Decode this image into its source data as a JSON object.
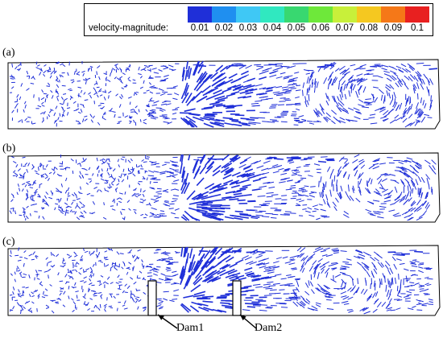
{
  "legend": {
    "label": "velocity-magnitude:",
    "ticks": [
      "0.01",
      "0.02",
      "0.03",
      "0.04",
      "0.05",
      "0.06",
      "0.07",
      "0.08",
      "0.09",
      "0.1"
    ],
    "colors": [
      "#1f2fd8",
      "#1f8ff0",
      "#3fc8f5",
      "#30e8c0",
      "#38d870",
      "#6ee83a",
      "#c8f03a",
      "#f5c820",
      "#f57818",
      "#e82020"
    ]
  },
  "panels": [
    {
      "id": "a",
      "label": "(a)",
      "vortex_center_x": 460,
      "vortex_label": "recirculation near right end"
    },
    {
      "id": "b",
      "label": "(b)",
      "vortex_center_x": 480,
      "vortex_label": "recirculation near right end"
    },
    {
      "id": "c",
      "label": "(c)",
      "vortex_center_x": 420,
      "vortex_label": "large recirculation"
    }
  ],
  "dams": [
    {
      "label": "Dam1"
    },
    {
      "label": "Dam2"
    }
  ]
}
